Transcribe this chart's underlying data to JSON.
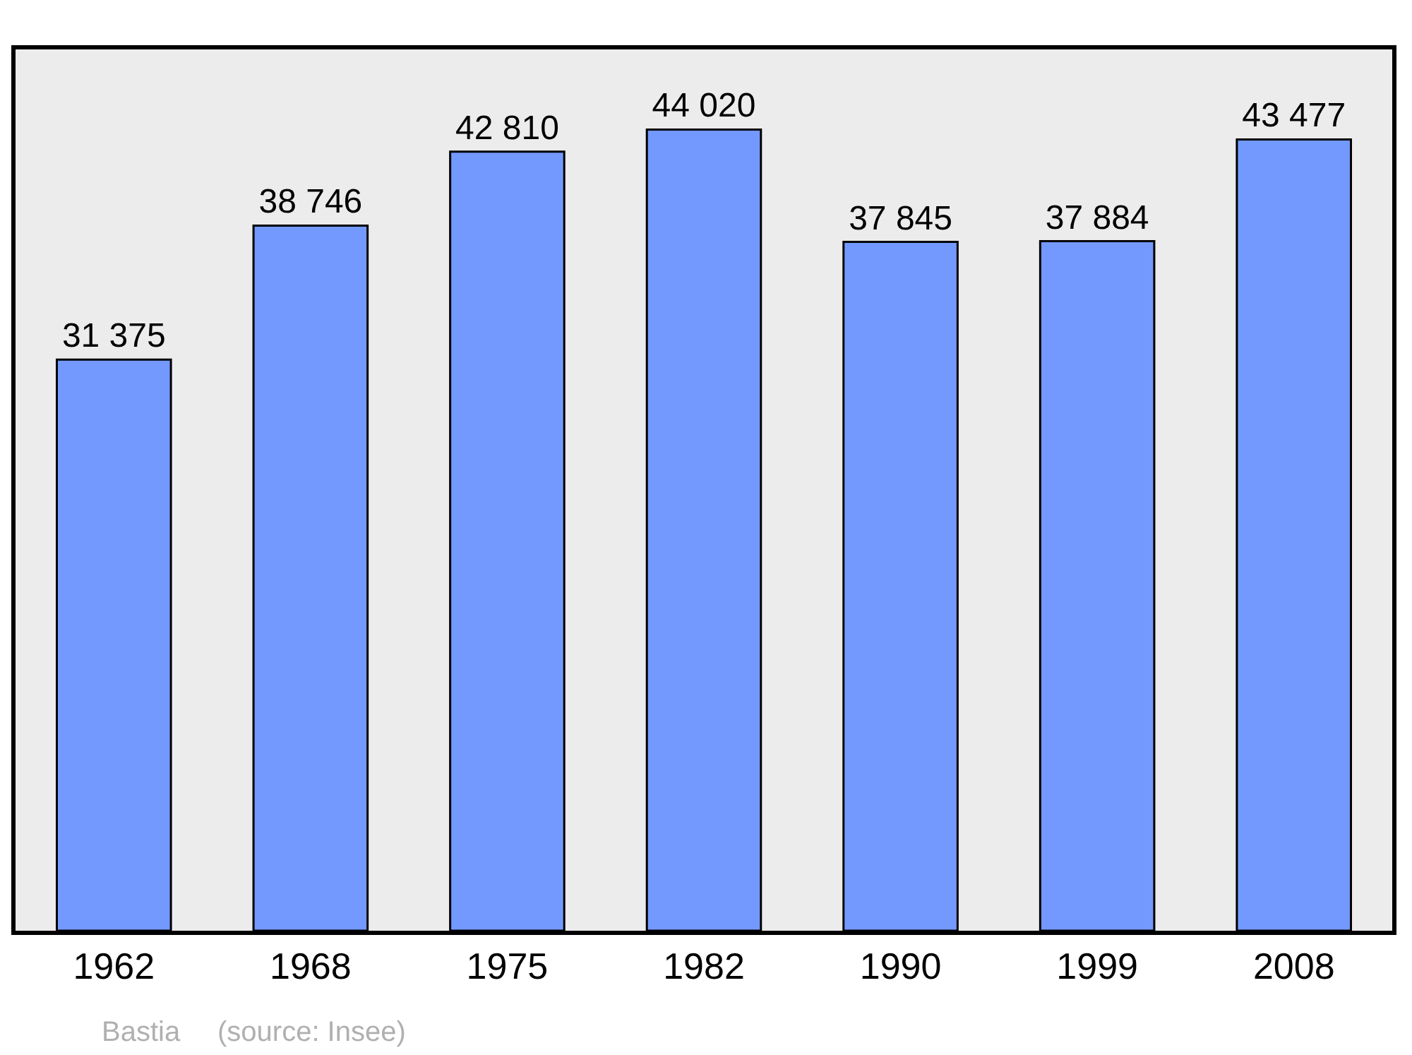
{
  "chart_data": {
    "type": "bar",
    "categories": [
      "1962",
      "1968",
      "1975",
      "1982",
      "1990",
      "1999",
      "2008"
    ],
    "values": [
      31375,
      38746,
      42810,
      44020,
      37845,
      37884,
      43477
    ],
    "color": "#7399ff",
    "data_labels": true,
    "value_labels": [
      "31 375",
      "38 746",
      "42 810",
      "44 020",
      "37 845",
      "37 884",
      "43 477"
    ],
    "grid": false,
    "legend": false,
    "annotations": [
      "Bastia",
      "(source: Insee)"
    ]
  }
}
